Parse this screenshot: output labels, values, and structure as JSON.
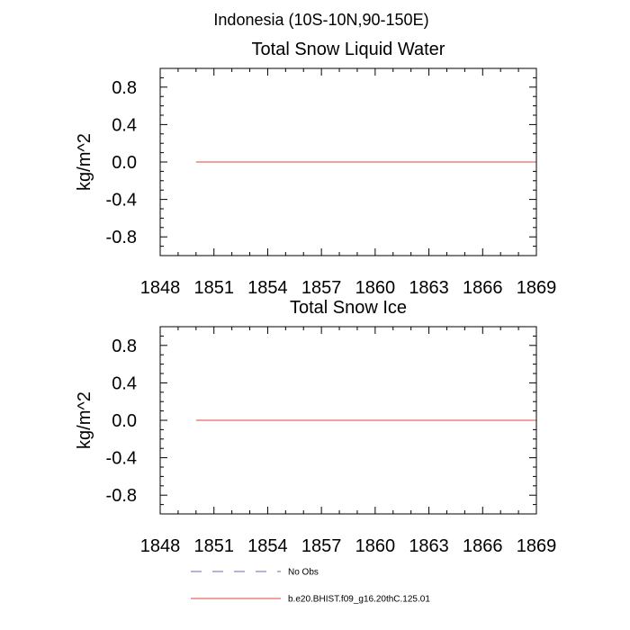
{
  "super_title": "Indonesia (10S-10N,90-150E)",
  "chart_data": [
    {
      "type": "line",
      "title": "Total Snow Liquid Water",
      "xlabel": "",
      "ylabel": "kg/m^2",
      "xlim": [
        1848,
        1869
      ],
      "ylim": [
        -1.0,
        1.0
      ],
      "x_ticks": [
        1848,
        1851,
        1854,
        1857,
        1860,
        1863,
        1866,
        1869
      ],
      "y_ticks": [
        -0.8,
        -0.4,
        0.0,
        0.4,
        0.8
      ],
      "y_tick_labels": [
        "-0.8",
        "-0.4",
        "0.0",
        "0.4",
        "0.8"
      ],
      "series": [
        {
          "name": "b.e20.BHIST.f09_g16.20thC.125.01",
          "color": "#e8413a",
          "x": [
            1850,
            1869
          ],
          "y": [
            0.0,
            0.0
          ]
        }
      ]
    },
    {
      "type": "line",
      "title": "Total Snow Ice",
      "xlabel": "",
      "ylabel": "kg/m^2",
      "xlim": [
        1848,
        1869
      ],
      "ylim": [
        -1.0,
        1.0
      ],
      "x_ticks": [
        1848,
        1851,
        1854,
        1857,
        1860,
        1863,
        1866,
        1869
      ],
      "y_ticks": [
        -0.8,
        -0.4,
        0.0,
        0.4,
        0.8
      ],
      "y_tick_labels": [
        "-0.8",
        "-0.4",
        "0.0",
        "0.4",
        "0.8"
      ],
      "series": [
        {
          "name": "b.e20.BHIST.f09_g16.20thC.125.01",
          "color": "#e8413a",
          "x": [
            1850,
            1869
          ],
          "y": [
            0.0,
            0.0
          ]
        }
      ]
    }
  ],
  "legend": {
    "entries": [
      {
        "label": "No Obs",
        "color": "#6b6bb3",
        "style": "dashed"
      },
      {
        "label": "b.e20.BHIST.f09_g16.20thC.125.01",
        "color": "#e8413a",
        "style": "solid"
      }
    ]
  },
  "colors": {
    "frame": "#000000",
    "obs_line": "#6b6bb3",
    "model_line": "#e8413a"
  }
}
